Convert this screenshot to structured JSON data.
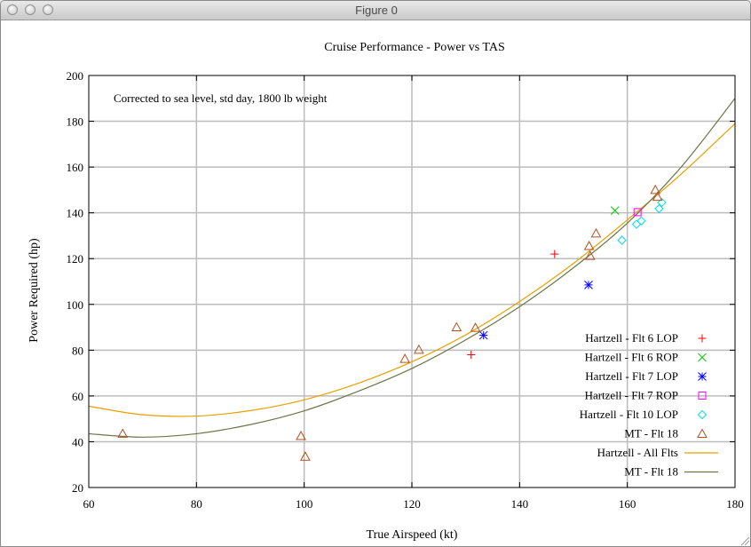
{
  "window": {
    "title": "Figure 0"
  },
  "chart_data": {
    "type": "scatter",
    "title": "Cruise Performance - Power vs TAS",
    "annotation": "Corrected to sea level, std day, 1800 lb weight",
    "xlabel": "True Airspeed (kt)",
    "ylabel": "Power Required (hp)",
    "xlim": [
      60,
      180
    ],
    "ylim": [
      20,
      200
    ],
    "xticks": [
      60,
      80,
      100,
      120,
      140,
      160,
      180
    ],
    "yticks": [
      20,
      40,
      60,
      80,
      100,
      120,
      140,
      160,
      180,
      200
    ],
    "grid": true,
    "legend_position": "bottom-right",
    "series": [
      {
        "name": "Hartzell - Flt 6 LOP",
        "marker": "plus",
        "color": "#ff0000",
        "points": [
          [
            146.5,
            122
          ],
          [
            131,
            78
          ]
        ]
      },
      {
        "name": "Hartzell - Flt 6 ROP",
        "marker": "cross",
        "color": "#00cc00",
        "points": [
          [
            157.7,
            141
          ]
        ]
      },
      {
        "name": "Hartzell - Flt 7 LOP",
        "marker": "star",
        "color": "#0000ff",
        "points": [
          [
            133.3,
            86.5
          ],
          [
            152.8,
            108.5
          ]
        ]
      },
      {
        "name": "Hartzell - Flt 7 ROP",
        "marker": "square",
        "color": "#ff00ff",
        "points": [
          [
            161.9,
            140.3
          ]
        ]
      },
      {
        "name": "Hartzell - Flt 10 LOP",
        "marker": "diamond",
        "color": "#00dddd",
        "points": [
          [
            159,
            128
          ],
          [
            161.7,
            135
          ],
          [
            162.6,
            136.5
          ],
          [
            165.9,
            141.8
          ],
          [
            166.4,
            144.5
          ]
        ]
      },
      {
        "name": "MT - Flt 18",
        "marker": "triangle",
        "color": "#b2501c",
        "points": [
          [
            66.3,
            43.5
          ],
          [
            99.4,
            42.5
          ],
          [
            100.2,
            33.5
          ],
          [
            118.7,
            76.2
          ],
          [
            121.3,
            80.2
          ],
          [
            128.3,
            90
          ],
          [
            131.8,
            89.8
          ],
          [
            152.9,
            125.5
          ],
          [
            153.1,
            121.2
          ],
          [
            154.2,
            131
          ],
          [
            165.2,
            150
          ],
          [
            165.6,
            147
          ]
        ]
      },
      {
        "name": "Hartzell - All Flts",
        "line": true,
        "color": "#e8a000",
        "x": [
          60,
          70,
          80,
          90,
          100,
          110,
          120,
          130,
          140,
          150,
          160,
          170,
          180
        ],
        "values": [
          55.5,
          51.8,
          51.2,
          53.6,
          58.3,
          65.5,
          74.9,
          86.7,
          101.2,
          117.9,
          136.9,
          156.9,
          179
        ]
      },
      {
        "name": "MT - Flt 18",
        "line": true,
        "color": "#6d7549",
        "x": [
          60,
          70,
          80,
          90,
          100,
          110,
          120,
          130,
          140,
          150,
          160,
          170,
          180
        ],
        "values": [
          43.5,
          42,
          43.5,
          47.5,
          53.5,
          62,
          72,
          84.5,
          99,
          116,
          135.5,
          160,
          190
        ]
      }
    ]
  }
}
